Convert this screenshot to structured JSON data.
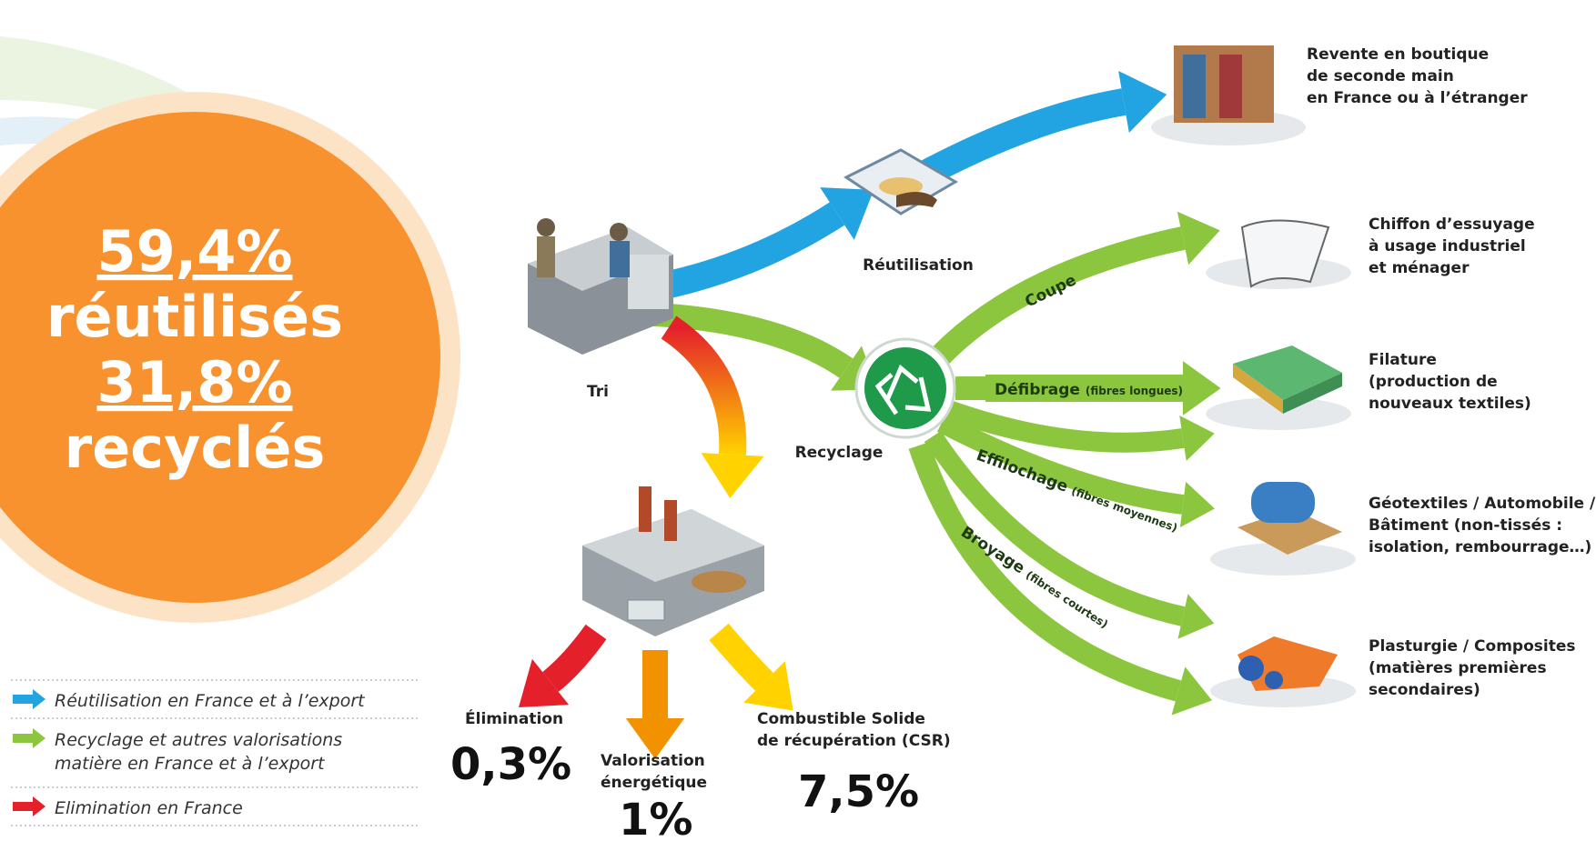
{
  "stats": {
    "reused_percent": "59,4%",
    "reused_label": "réutilisés",
    "recycled_percent": "31,8%",
    "recycled_label": "recyclés"
  },
  "legend": [
    {
      "lines": [
        "Réutilisation en France et à l’export"
      ]
    },
    {
      "lines": [
        "Recyclage et autres valorisations",
        "matière en France et à l’export"
      ]
    },
    {
      "lines": [
        "Elimination en France"
      ]
    }
  ],
  "nodes": {
    "tri": "Tri",
    "reutilisation": "Réutilisation",
    "recyclage": "Recyclage"
  },
  "flows": {
    "coupe": "Coupe",
    "defibrage": {
      "name": "Défibrage",
      "note": "(fibres longues)"
    },
    "effilochage": {
      "name": "Effilochage",
      "note": "(fibres moyennes)"
    },
    "broyage": {
      "name": "Broyage",
      "note": "(fibres courtes)"
    }
  },
  "outcomes": [
    {
      "lines": [
        "Revente en boutique",
        "de seconde main",
        "en France ou à l’étranger"
      ]
    },
    {
      "lines": [
        "Chiffon d’essuyage",
        "à usage industriel",
        "et ménager"
      ]
    },
    {
      "lines": [
        "Filature",
        "(production de",
        "nouveaux textiles)"
      ]
    },
    {
      "lines": [
        "Géotextiles / Automobile /",
        "Bâtiment (non-tissés :",
        "isolation, rembourrage…)"
      ]
    },
    {
      "lines": [
        "Plasturgie / Composites",
        "(matières premières",
        "secondaires)"
      ]
    }
  ],
  "disposal": [
    {
      "lines": [
        "Élimination"
      ],
      "value": "0,3%"
    },
    {
      "lines": [
        "Valorisation",
        "énergétique"
      ],
      "value": "1%"
    },
    {
      "lines": [
        "Combustible Solide",
        "de récupération (CSR)"
      ],
      "value": "7,5%"
    }
  ]
}
